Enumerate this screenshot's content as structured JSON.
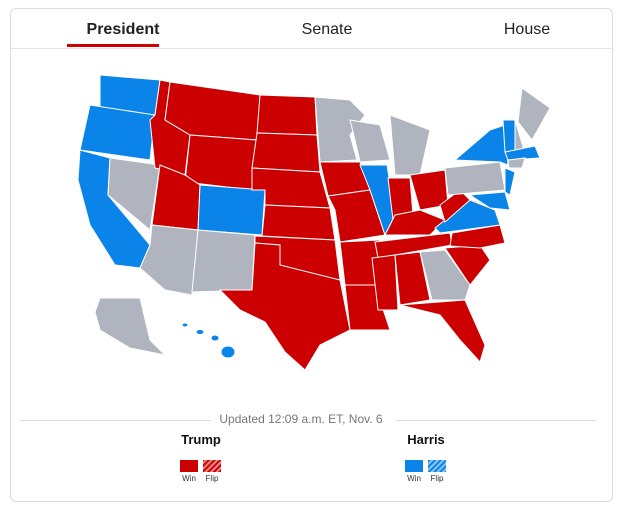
{
  "tabs": [
    "President",
    "Senate",
    "House"
  ],
  "updated": "Updated 12:09 a.m. ET, Nov. 6",
  "legend": [
    {
      "name": "Trump",
      "items": [
        "Win",
        "Flip"
      ]
    },
    {
      "name": "Harris",
      "items": [
        "Win",
        "Flip"
      ]
    }
  ]
}
